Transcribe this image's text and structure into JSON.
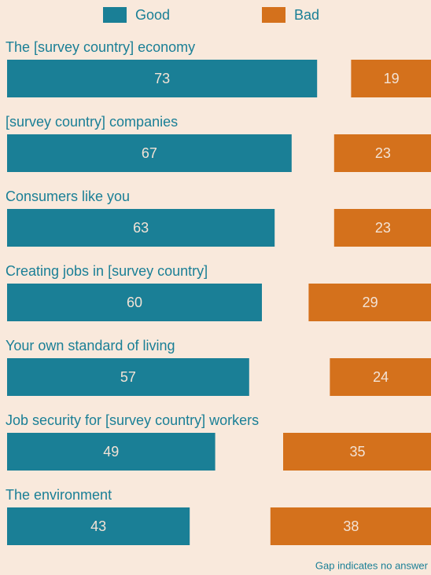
{
  "chart_data": {
    "type": "diverging-bar",
    "categories": [
      "The [survey country] economy",
      "[survey country] companies",
      "Consumers like you",
      "Creating jobs in [survey country]",
      "Your own standard of living",
      "Job security for [survey country] workers",
      "The environment"
    ],
    "series": [
      {
        "name": "Good",
        "color": "#1a7f96",
        "values": [
          73,
          67,
          63,
          60,
          57,
          49,
          43
        ]
      },
      {
        "name": "Bad",
        "color": "#d4711c",
        "values": [
          19,
          23,
          23,
          29,
          24,
          35,
          38
        ]
      }
    ],
    "note": "Gap indicates no answer"
  }
}
